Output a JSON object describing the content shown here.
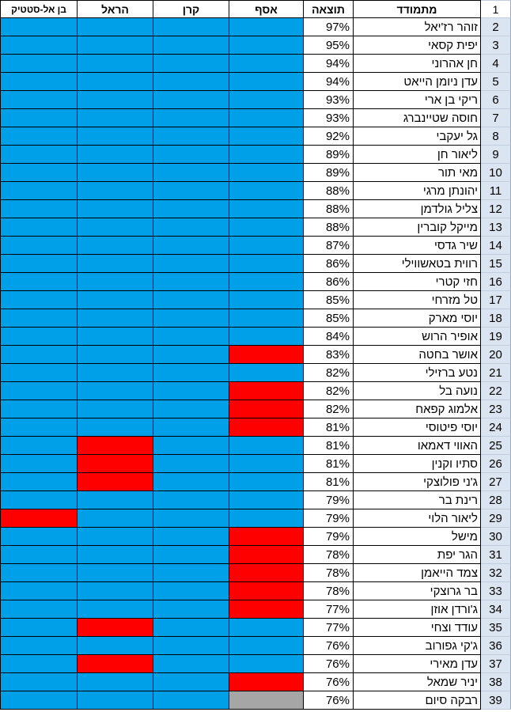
{
  "colors": {
    "blue": "#00a0e9",
    "red": "#ff0000",
    "gray": "#a6a6a6",
    "row_header_bg": "#dbe5f1"
  },
  "header": {
    "row_number": "1",
    "name": "מתמודד",
    "score": "תוצאה",
    "asaf": "אסף",
    "keren": "קרן",
    "harel": "הראל",
    "ben": "בן אל-סטטיק"
  },
  "rows": [
    {
      "num": "2",
      "name": "זוהר רז'יאל",
      "score": "97%",
      "asaf": "blue",
      "keren": "blue",
      "harel": "blue",
      "ben": "blue"
    },
    {
      "num": "3",
      "name": "יפית קסאי",
      "score": "95%",
      "asaf": "blue",
      "keren": "blue",
      "harel": "blue",
      "ben": "blue"
    },
    {
      "num": "4",
      "name": "חן אהרוני",
      "score": "94%",
      "asaf": "blue",
      "keren": "blue",
      "harel": "blue",
      "ben": "blue"
    },
    {
      "num": "5",
      "name": "עדן ניומן הייאט",
      "score": "94%",
      "asaf": "blue",
      "keren": "blue",
      "harel": "blue",
      "ben": "blue"
    },
    {
      "num": "6",
      "name": "ריקי בן ארי",
      "score": "93%",
      "asaf": "blue",
      "keren": "blue",
      "harel": "blue",
      "ben": "blue"
    },
    {
      "num": "7",
      "name": "חוסה שטיינברג",
      "score": "93%",
      "asaf": "blue",
      "keren": "blue",
      "harel": "blue",
      "ben": "blue"
    },
    {
      "num": "8",
      "name": "גל יעקבי",
      "score": "92%",
      "asaf": "blue",
      "keren": "blue",
      "harel": "blue",
      "ben": "blue"
    },
    {
      "num": "9",
      "name": "ליאור חן",
      "score": "89%",
      "asaf": "blue",
      "keren": "blue",
      "harel": "blue",
      "ben": "blue"
    },
    {
      "num": "10",
      "name": "מאי תור",
      "score": "89%",
      "asaf": "blue",
      "keren": "blue",
      "harel": "blue",
      "ben": "blue"
    },
    {
      "num": "11",
      "name": "יהונתן מרגי",
      "score": "88%",
      "asaf": "blue",
      "keren": "blue",
      "harel": "blue",
      "ben": "blue"
    },
    {
      "num": "12",
      "name": "צליל גולדמן",
      "score": "88%",
      "asaf": "blue",
      "keren": "blue",
      "harel": "blue",
      "ben": "blue"
    },
    {
      "num": "13",
      "name": "מייקל קוברין",
      "score": "88%",
      "asaf": "blue",
      "keren": "blue",
      "harel": "blue",
      "ben": "blue"
    },
    {
      "num": "14",
      "name": "שיר גדסי",
      "score": "87%",
      "asaf": "blue",
      "keren": "blue",
      "harel": "blue",
      "ben": "blue"
    },
    {
      "num": "15",
      "name": "רווית בטאשווילי",
      "score": "86%",
      "asaf": "blue",
      "keren": "blue",
      "harel": "blue",
      "ben": "blue"
    },
    {
      "num": "16",
      "name": "חזי קטרי",
      "score": "86%",
      "asaf": "blue",
      "keren": "blue",
      "harel": "blue",
      "ben": "blue"
    },
    {
      "num": "17",
      "name": "טל מזרחי",
      "score": "85%",
      "asaf": "blue",
      "keren": "blue",
      "harel": "blue",
      "ben": "blue"
    },
    {
      "num": "18",
      "name": "יוסי מארק",
      "score": "85%",
      "asaf": "blue",
      "keren": "blue",
      "harel": "blue",
      "ben": "blue"
    },
    {
      "num": "19",
      "name": "אופיר הרוש",
      "score": "84%",
      "asaf": "blue",
      "keren": "blue",
      "harel": "blue",
      "ben": "blue"
    },
    {
      "num": "20",
      "name": "אושר בחטה",
      "score": "83%",
      "asaf": "red",
      "keren": "blue",
      "harel": "blue",
      "ben": "blue"
    },
    {
      "num": "21",
      "name": "נטע ברזילי",
      "score": "82%",
      "asaf": "blue",
      "keren": "blue",
      "harel": "blue",
      "ben": "blue"
    },
    {
      "num": "22",
      "name": "נועה בל",
      "score": "82%",
      "asaf": "red",
      "keren": "blue",
      "harel": "blue",
      "ben": "blue"
    },
    {
      "num": "23",
      "name": "אלמוג קפאח",
      "score": "82%",
      "asaf": "red",
      "keren": "blue",
      "harel": "blue",
      "ben": "blue"
    },
    {
      "num": "24",
      "name": "יוסי פיטוסי",
      "score": "81%",
      "asaf": "red",
      "keren": "blue",
      "harel": "blue",
      "ben": "blue"
    },
    {
      "num": "25",
      "name": "האווי דאמאו",
      "score": "81%",
      "asaf": "blue",
      "keren": "blue",
      "harel": "red",
      "ben": "blue"
    },
    {
      "num": "26",
      "name": "סתיו וקנין",
      "score": "81%",
      "asaf": "blue",
      "keren": "blue",
      "harel": "red",
      "ben": "blue"
    },
    {
      "num": "27",
      "name": "ג'ני פולוצקי",
      "score": "81%",
      "asaf": "blue",
      "keren": "blue",
      "harel": "red",
      "ben": "blue"
    },
    {
      "num": "28",
      "name": "רינת בר",
      "score": "79%",
      "asaf": "blue",
      "keren": "blue",
      "harel": "blue",
      "ben": "blue"
    },
    {
      "num": "29",
      "name": "ליאור הלוי",
      "score": "79%",
      "asaf": "blue",
      "keren": "blue",
      "harel": "blue",
      "ben": "red"
    },
    {
      "num": "30",
      "name": "מישל",
      "score": "79%",
      "asaf": "red",
      "keren": "blue",
      "harel": "blue",
      "ben": "blue"
    },
    {
      "num": "31",
      "name": "הגר יפת",
      "score": "78%",
      "asaf": "red",
      "keren": "blue",
      "harel": "blue",
      "ben": "blue"
    },
    {
      "num": "32",
      "name": "צמד הייאמן",
      "score": "78%",
      "asaf": "red",
      "keren": "blue",
      "harel": "blue",
      "ben": "blue"
    },
    {
      "num": "33",
      "name": "בר גרוצקי",
      "score": "78%",
      "asaf": "red",
      "keren": "blue",
      "harel": "blue",
      "ben": "blue"
    },
    {
      "num": "34",
      "name": "ג'ורדן אוזן",
      "score": "77%",
      "asaf": "red",
      "keren": "blue",
      "harel": "blue",
      "ben": "blue"
    },
    {
      "num": "35",
      "name": "עודד וצחי",
      "score": "77%",
      "asaf": "blue",
      "keren": "blue",
      "harel": "red",
      "ben": "blue"
    },
    {
      "num": "36",
      "name": "ג'קי גפורוב",
      "score": "76%",
      "asaf": "blue",
      "keren": "blue",
      "harel": "blue",
      "ben": "blue"
    },
    {
      "num": "37",
      "name": "עדן מאירי",
      "score": "76%",
      "asaf": "blue",
      "keren": "blue",
      "harel": "red",
      "ben": "blue"
    },
    {
      "num": "38",
      "name": "יניר שמאל",
      "score": "76%",
      "asaf": "red",
      "keren": "blue",
      "harel": "blue",
      "ben": "blue"
    },
    {
      "num": "39",
      "name": "רבקה סיום",
      "score": "76%",
      "asaf": "gray",
      "keren": "blue",
      "harel": "blue",
      "ben": "blue"
    }
  ]
}
